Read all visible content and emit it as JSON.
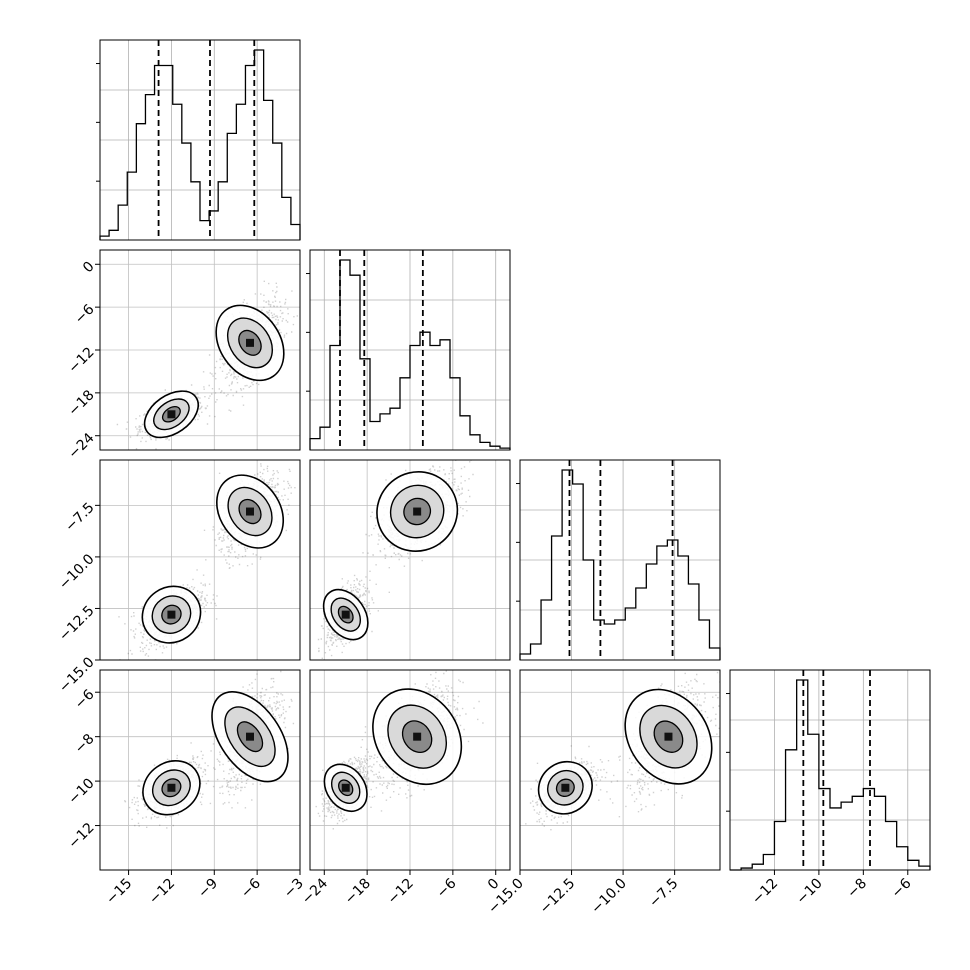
{
  "chart_data": {
    "type": "corner",
    "params": [
      {
        "range": [
          -17,
          -3
        ],
        "ticks": [
          -15,
          -12,
          -9,
          -6,
          -3
        ],
        "tick_labels": [
          "−15",
          "−12",
          "−9",
          "−6",
          "−3"
        ],
        "quantiles": [
          -12.9,
          -9.3,
          -6.2
        ],
        "modes": [
          {
            "mean": -12.0,
            "sd": 1.1,
            "w": 0.5
          },
          {
            "mean": -6.5,
            "sd": 1.1,
            "w": 0.5
          }
        ],
        "hist_counts": [
          0.02,
          0.05,
          0.18,
          0.35,
          0.6,
          0.75,
          0.9,
          0.9,
          0.7,
          0.5,
          0.3,
          0.1,
          0.15,
          0.3,
          0.55,
          0.7,
          0.9,
          0.98,
          0.72,
          0.5,
          0.22,
          0.08
        ]
      },
      {
        "range": [
          -26,
          2
        ],
        "ticks": [
          -24,
          -18,
          -12,
          -6,
          0
        ],
        "tick_labels": [
          "−24",
          "−18",
          "−12",
          "−6",
          "0"
        ],
        "quantiles": [
          -21.8,
          -18.4,
          -10.2
        ],
        "modes": [
          {
            "mean": -21.0,
            "sd": 1.4,
            "w": 0.5
          },
          {
            "mean": -11.0,
            "sd": 3.0,
            "w": 0.5
          }
        ],
        "hist_counts": [
          0.06,
          0.12,
          0.55,
          1.0,
          0.92,
          0.48,
          0.15,
          0.19,
          0.22,
          0.38,
          0.55,
          0.62,
          0.55,
          0.58,
          0.38,
          0.18,
          0.08,
          0.04,
          0.02,
          0.01
        ]
      },
      {
        "range": [
          -15,
          -5.3
        ],
        "ticks": [
          -15.0,
          -12.5,
          -10.0,
          -7.5
        ],
        "tick_labels": [
          "−15.0",
          "−12.5",
          "−10.0",
          "−7.5"
        ],
        "quantiles": [
          -12.6,
          -11.1,
          -7.6
        ],
        "modes": [
          {
            "mean": -12.8,
            "sd": 0.7,
            "w": 0.5
          },
          {
            "mean": -7.8,
            "sd": 1.0,
            "w": 0.5
          }
        ],
        "hist_counts": [
          0.03,
          0.08,
          0.3,
          0.62,
          0.95,
          0.88,
          0.5,
          0.2,
          0.18,
          0.2,
          0.26,
          0.36,
          0.48,
          0.57,
          0.6,
          0.52,
          0.38,
          0.2,
          0.06
        ]
      },
      {
        "range": [
          -14,
          -5
        ],
        "ticks": [
          -12,
          -10,
          -8,
          -6
        ],
        "tick_labels": [
          "−12",
          "−10",
          "−8",
          "−6"
        ],
        "quantiles": [
          -10.7,
          -9.8,
          -7.7
        ],
        "modes": [
          {
            "mean": -10.3,
            "sd": 0.6,
            "w": 0.55
          },
          {
            "mean": -8.0,
            "sd": 1.2,
            "w": 0.45
          }
        ],
        "hist_counts": [
          0.0,
          0.01,
          0.03,
          0.08,
          0.25,
          0.62,
          0.98,
          0.7,
          0.42,
          0.32,
          0.35,
          0.38,
          0.42,
          0.38,
          0.25,
          0.12,
          0.05,
          0.02
        ]
      }
    ],
    "y_ticks_row": {
      "1": {
        "ticks": [
          0,
          -6,
          -12,
          -18,
          -24
        ],
        "tick_labels": [
          "0",
          "−6",
          "−12",
          "−18",
          "−24"
        ]
      },
      "2": {
        "ticks": [
          -7.5,
          -10.0,
          -12.5,
          -15.0
        ],
        "tick_labels": [
          "−7.5",
          "−10.0",
          "−12.5",
          "−15.0"
        ]
      },
      "3": {
        "ticks": [
          -6,
          -8,
          -10,
          -12
        ],
        "tick_labels": [
          "−6",
          "−8",
          "−10",
          "−12"
        ]
      }
    },
    "grid": true,
    "quantile_levels": [
      0.16,
      0.5,
      0.84
    ],
    "contour_style": "white filled inner contours over grey scatter"
  }
}
